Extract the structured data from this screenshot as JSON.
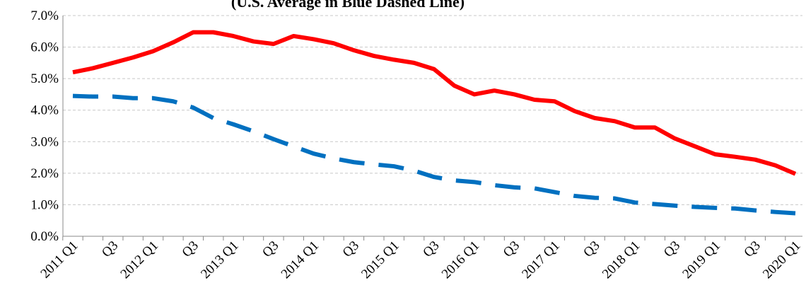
{
  "chart_data": {
    "type": "line",
    "subtitle": "(U.S. Average in Blue Dashed Line)",
    "categories": [
      "2011 Q1",
      null,
      "Q3",
      null,
      "2012 Q1",
      null,
      "Q3",
      null,
      "2013 Q1",
      null,
      "Q3",
      null,
      "2014 Q1",
      null,
      "Q3",
      null,
      "2015 Q1",
      null,
      "Q3",
      null,
      "2016 Q1",
      null,
      "Q3",
      null,
      "2017 Q1",
      null,
      "Q3",
      null,
      "2018 Q1",
      null,
      "Q3",
      null,
      "2019 Q1",
      null,
      "Q3",
      null,
      "2020 Q1"
    ],
    "series": [
      {
        "color": "#ff0000",
        "dashed": false,
        "values": [
          5.2,
          5.33,
          5.5,
          5.67,
          5.87,
          6.15,
          6.47,
          6.47,
          6.35,
          6.18,
          6.1,
          6.35,
          6.25,
          6.12,
          5.9,
          5.72,
          5.6,
          5.5,
          5.3,
          4.78,
          4.5,
          4.62,
          4.5,
          4.33,
          4.28,
          3.97,
          3.75,
          3.65,
          3.45,
          3.45,
          3.1,
          2.85,
          2.6,
          2.52,
          2.43,
          2.25,
          1.98
        ]
      },
      {
        "color": "#0070c0",
        "dashed": true,
        "values": [
          4.45,
          4.43,
          4.43,
          4.38,
          4.38,
          4.28,
          4.08,
          3.75,
          3.55,
          3.33,
          3.08,
          2.85,
          2.62,
          2.47,
          2.35,
          2.28,
          2.22,
          2.08,
          1.88,
          1.77,
          1.72,
          1.62,
          1.55,
          1.52,
          1.4,
          1.28,
          1.22,
          1.2,
          1.07,
          1.02,
          0.97,
          0.93,
          0.9,
          0.88,
          0.82,
          0.77,
          0.73
        ]
      }
    ],
    "ylim": [
      0,
      7
    ],
    "yticks": [
      {
        "value": 0,
        "label": "0.0%"
      },
      {
        "value": 1,
        "label": "1.0%"
      },
      {
        "value": 2,
        "label": "2.0%"
      },
      {
        "value": 3,
        "label": "3.0%"
      },
      {
        "value": 4,
        "label": "4.0%"
      },
      {
        "value": 5,
        "label": "5.0%"
      },
      {
        "value": 6,
        "label": "6.0%"
      },
      {
        "value": 7,
        "label": "7.0%"
      }
    ],
    "grid": true
  }
}
